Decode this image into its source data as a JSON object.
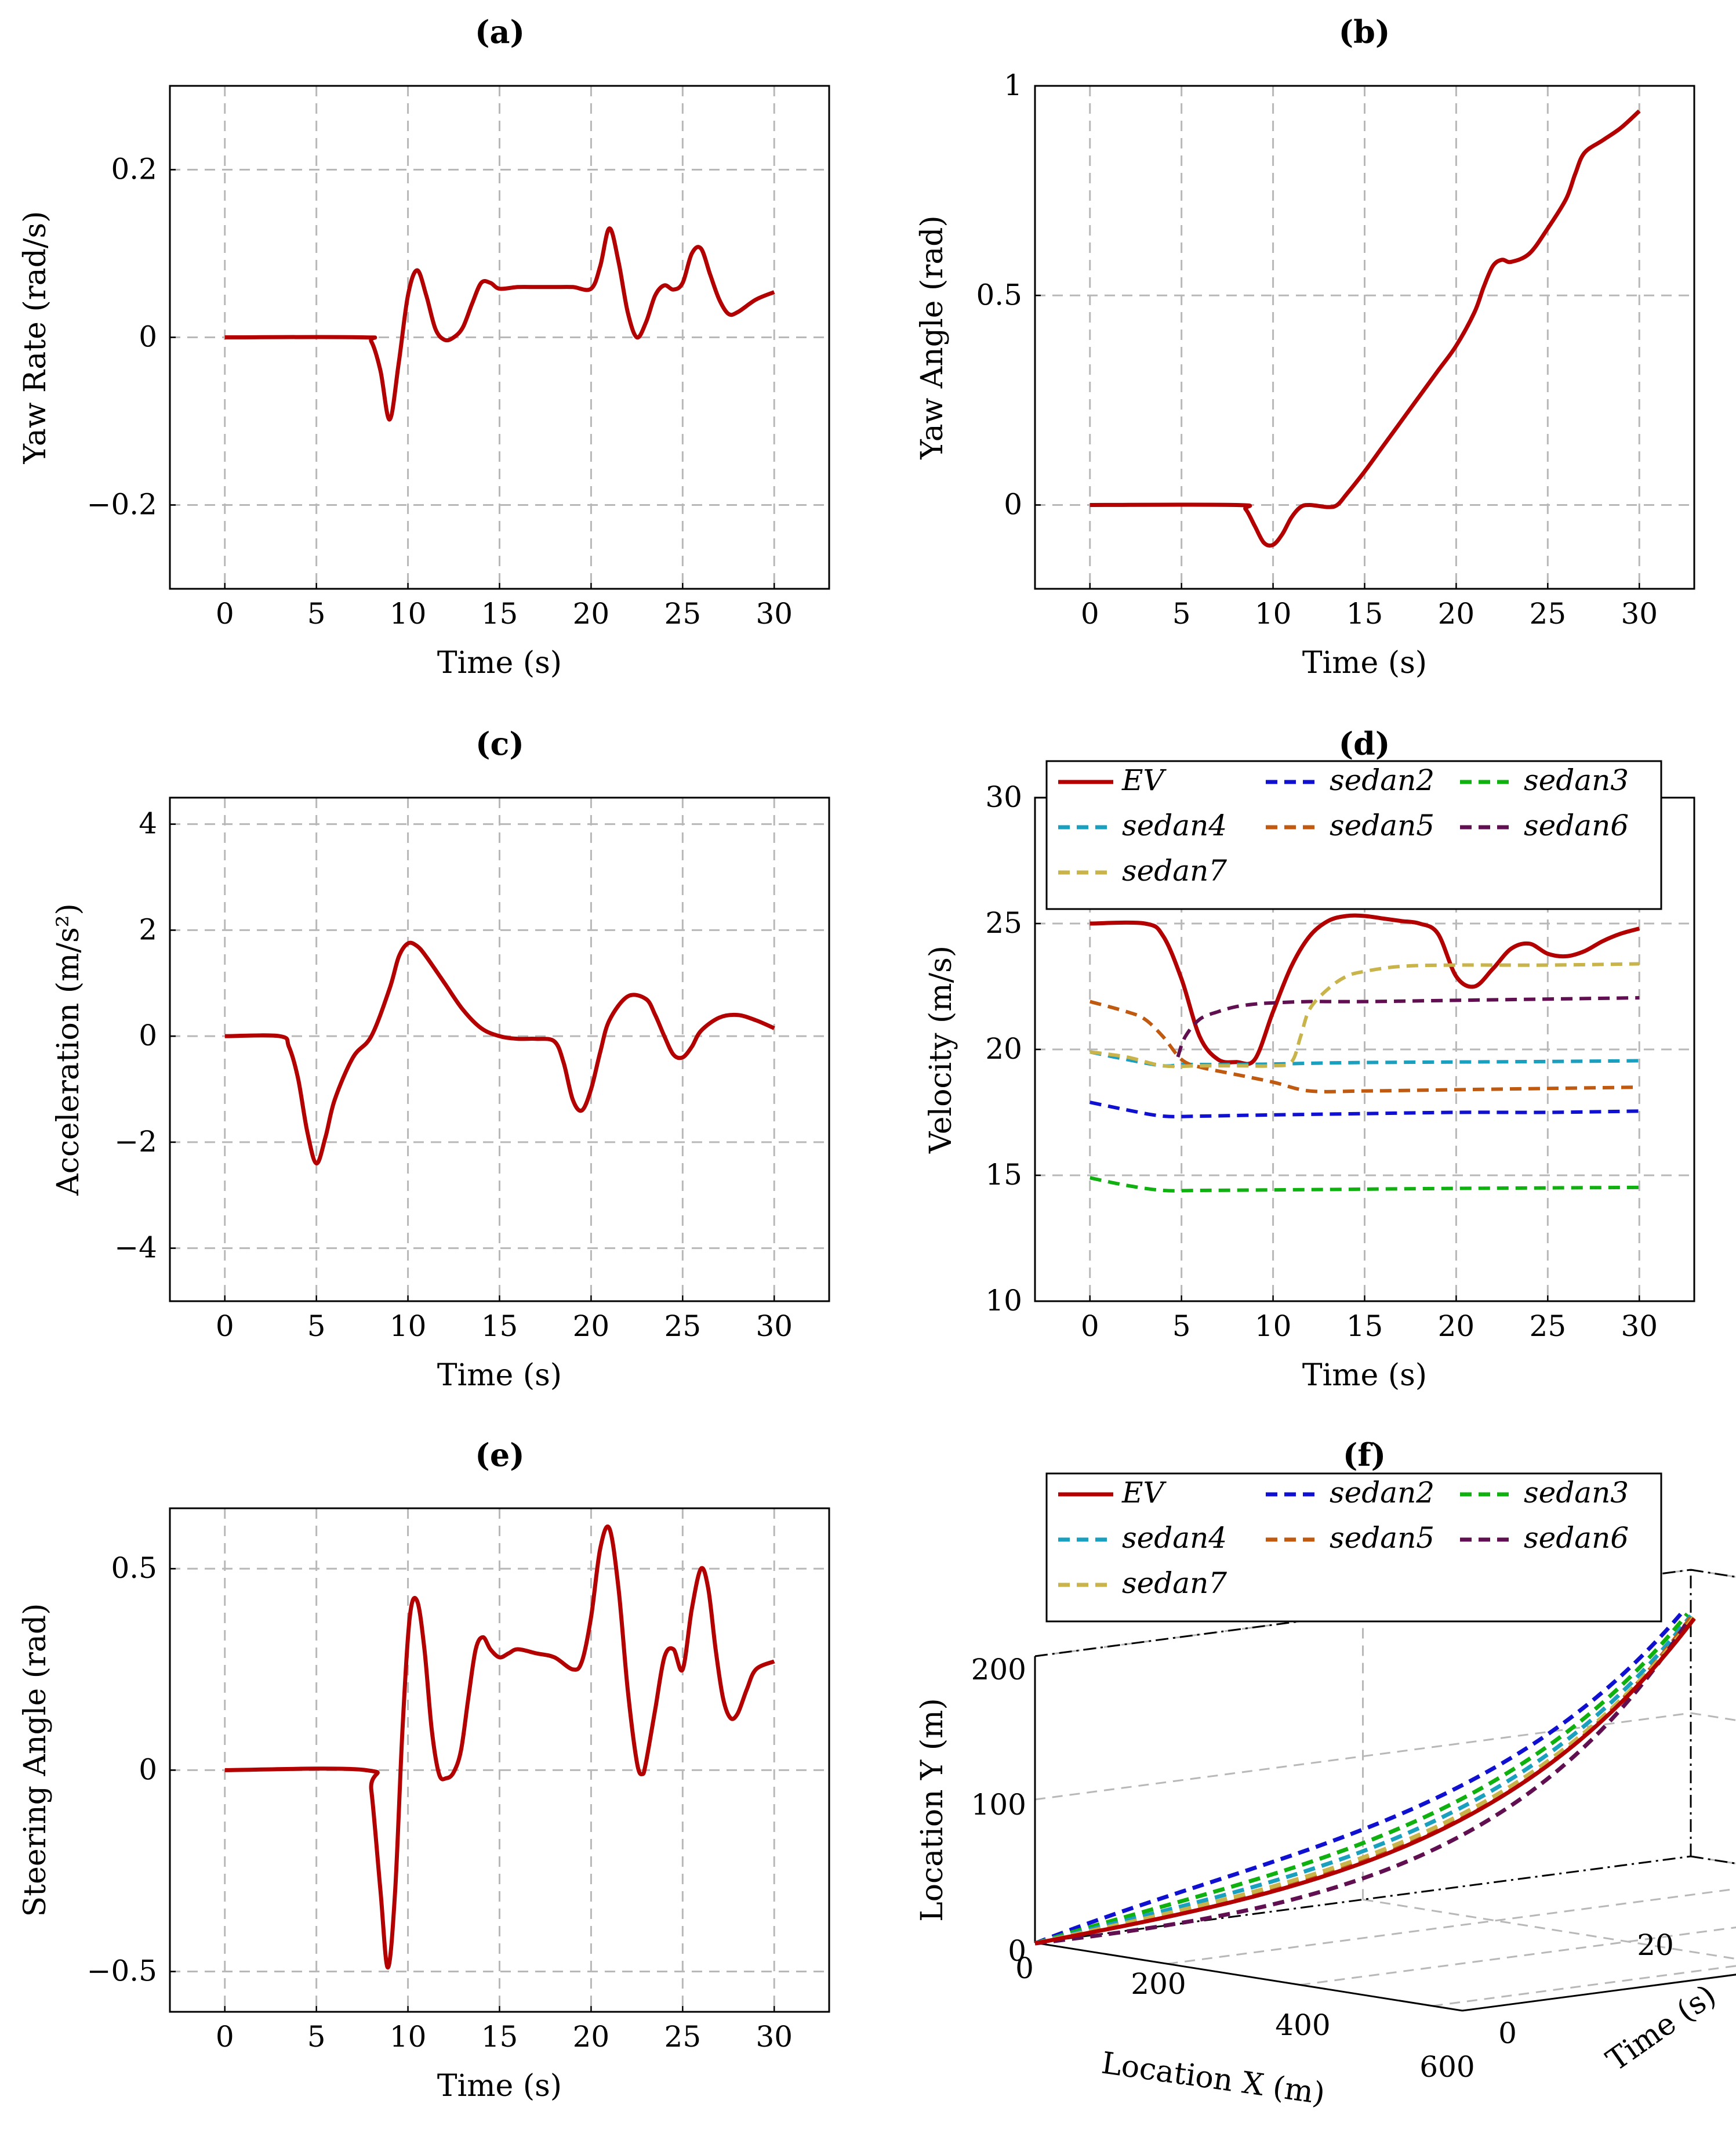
{
  "chart_data": [
    {
      "id": "a",
      "type": "line",
      "title": "(a)",
      "xlabel": "Time (s)",
      "ylabel": "Yaw Rate (rad/s)",
      "xlim": [
        -3,
        33
      ],
      "ylim": [
        -0.3,
        0.3
      ],
      "xticks": [
        0,
        5,
        10,
        15,
        20,
        25,
        30
      ],
      "xtick_labels": [
        "0",
        "5",
        "10",
        "15",
        "20",
        "25",
        "30"
      ],
      "yticks": [
        -0.2,
        0,
        0.2
      ],
      "ytick_labels": [
        "−0.2",
        "0",
        "0.2"
      ],
      "grid": true,
      "series": [
        {
          "color": "#b30000",
          "style": "solid",
          "x": [
            0,
            7.5,
            8,
            8.5,
            9,
            9.5,
            10,
            10.5,
            11,
            11.5,
            12,
            12.5,
            13,
            13.5,
            14,
            14.5,
            15,
            16,
            17,
            18,
            19,
            20,
            20.5,
            21,
            21.5,
            22,
            22.5,
            23,
            23.5,
            24,
            24.5,
            25,
            25.5,
            26,
            26.5,
            27,
            27.5,
            28,
            29,
            30
          ],
          "y": [
            0,
            0,
            -0.005,
            -0.04,
            -0.098,
            -0.03,
            0.05,
            0.08,
            0.05,
            0.01,
            -0.003,
            0.0,
            0.012,
            0.04,
            0.065,
            0.065,
            0.058,
            0.06,
            0.06,
            0.06,
            0.06,
            0.058,
            0.085,
            0.13,
            0.09,
            0.03,
            0.0,
            0.018,
            0.05,
            0.062,
            0.057,
            0.065,
            0.1,
            0.106,
            0.075,
            0.045,
            0.028,
            0.03,
            0.045,
            0.054
          ]
        }
      ]
    },
    {
      "id": "b",
      "type": "line",
      "title": "(b)",
      "xlabel": "Time (s)",
      "ylabel": "Yaw Angle (rad)",
      "xlim": [
        -3,
        33
      ],
      "ylim": [
        -0.2,
        1
      ],
      "xticks": [
        0,
        5,
        10,
        15,
        20,
        25,
        30
      ],
      "xtick_labels": [
        "0",
        "5",
        "10",
        "15",
        "20",
        "25",
        "30"
      ],
      "yticks": [
        0,
        0.5,
        1
      ],
      "ytick_labels": [
        "0",
        "0.5",
        "1"
      ],
      "grid": true,
      "series": [
        {
          "color": "#b30000",
          "style": "solid",
          "x": [
            0,
            8,
            8.5,
            9,
            9.5,
            10,
            10.5,
            11,
            11.5,
            12,
            13,
            13.5,
            14,
            15,
            16,
            17,
            18,
            19,
            20,
            21,
            21.5,
            22,
            22.5,
            23,
            24,
            25,
            26,
            26.5,
            27,
            28,
            29,
            30
          ],
          "y": [
            0,
            0,
            -0.01,
            -0.05,
            -0.09,
            -0.095,
            -0.07,
            -0.03,
            -0.005,
            0.0,
            -0.005,
            0.0,
            0.025,
            0.08,
            0.14,
            0.2,
            0.26,
            0.32,
            0.38,
            0.46,
            0.52,
            0.57,
            0.585,
            0.58,
            0.6,
            0.66,
            0.73,
            0.79,
            0.84,
            0.87,
            0.9,
            0.94
          ]
        }
      ]
    },
    {
      "id": "c",
      "type": "line",
      "title": "(c)",
      "xlabel": "Time (s)",
      "ylabel": "Acceleration (m/s²)",
      "xlim": [
        -3,
        33
      ],
      "ylim": [
        -5,
        4.5
      ],
      "xticks": [
        0,
        5,
        10,
        15,
        20,
        25,
        30
      ],
      "xtick_labels": [
        "0",
        "5",
        "10",
        "15",
        "20",
        "25",
        "30"
      ],
      "yticks": [
        -4,
        -2,
        0,
        2,
        4
      ],
      "ytick_labels": [
        "−4",
        "−2",
        "0",
        "2",
        "4"
      ],
      "grid": true,
      "series": [
        {
          "color": "#b30000",
          "style": "solid",
          "x": [
            0,
            3,
            3.5,
            4,
            4.5,
            5,
            5.5,
            6,
            7,
            8,
            9,
            9.5,
            10,
            10.5,
            11,
            12,
            13,
            14,
            15,
            16,
            17,
            18,
            18.5,
            19,
            19.5,
            20,
            20.5,
            21,
            22,
            23,
            23.5,
            24,
            24.5,
            25,
            25.5,
            26,
            27,
            28,
            29,
            30
          ],
          "y": [
            0,
            0,
            -0.2,
            -0.8,
            -1.8,
            -2.4,
            -1.9,
            -1.2,
            -0.4,
            0,
            0.9,
            1.5,
            1.75,
            1.7,
            1.5,
            1.0,
            0.5,
            0.15,
            0,
            -0.05,
            -0.05,
            -0.1,
            -0.5,
            -1.2,
            -1.4,
            -1.0,
            -0.3,
            0.3,
            0.75,
            0.7,
            0.4,
            0.0,
            -0.35,
            -0.4,
            -0.2,
            0.1,
            0.35,
            0.4,
            0.3,
            0.15
          ]
        }
      ]
    },
    {
      "id": "d",
      "type": "line",
      "title": "(d)",
      "xlabel": "Time (s)",
      "ylabel": "Velocity (m/s)",
      "xlim": [
        -3,
        33
      ],
      "ylim": [
        10,
        30
      ],
      "xticks": [
        0,
        5,
        10,
        15,
        20,
        25,
        30
      ],
      "xtick_labels": [
        "0",
        "5",
        "10",
        "15",
        "20",
        "25",
        "30"
      ],
      "yticks": [
        10,
        15,
        20,
        25,
        30
      ],
      "ytick_labels": [
        "10",
        "15",
        "20",
        "25",
        "30"
      ],
      "grid": true,
      "legend_position": "top",
      "series": [
        {
          "name": "EV",
          "color": "#b30000",
          "style": "solid",
          "x": [
            0,
            3,
            4,
            5,
            6,
            7,
            8,
            9,
            10,
            11,
            12,
            13,
            14,
            15,
            16,
            17,
            18,
            19,
            20,
            21,
            22,
            23,
            24,
            25,
            26,
            27,
            28,
            29,
            30
          ],
          "y": [
            25,
            25,
            24.5,
            22.8,
            20.5,
            19.6,
            19.5,
            19.6,
            21.5,
            23.3,
            24.5,
            25.1,
            25.3,
            25.3,
            25.2,
            25.1,
            25,
            24.6,
            22.9,
            22.5,
            23.2,
            24,
            24.2,
            23.8,
            23.7,
            23.9,
            24.3,
            24.6,
            24.8
          ]
        },
        {
          "name": "sedan2",
          "color": "#1010d0",
          "style": "dashed",
          "x": [
            0,
            2,
            4,
            6,
            10,
            15,
            20,
            25,
            30
          ],
          "y": [
            17.9,
            17.6,
            17.35,
            17.35,
            17.4,
            17.45,
            17.5,
            17.5,
            17.55
          ]
        },
        {
          "name": "sedan3",
          "color": "#10b010",
          "style": "dashed",
          "x": [
            0,
            2,
            4,
            6,
            10,
            15,
            20,
            25,
            30
          ],
          "y": [
            14.9,
            14.6,
            14.4,
            14.4,
            14.42,
            14.45,
            14.48,
            14.5,
            14.52
          ]
        },
        {
          "name": "sedan4",
          "color": "#1a9fbf",
          "style": "dashed",
          "x": [
            0,
            2,
            4,
            5,
            6,
            8,
            10,
            12,
            15,
            20,
            25,
            30
          ],
          "y": [
            19.9,
            19.6,
            19.35,
            19.4,
            19.4,
            19.4,
            19.42,
            19.45,
            19.48,
            19.5,
            19.52,
            19.55
          ]
        },
        {
          "name": "sedan5",
          "color": "#c05a10",
          "style": "dashed",
          "x": [
            0,
            2,
            3,
            4,
            5,
            6,
            8,
            10,
            12,
            15,
            20,
            25,
            30
          ],
          "y": [
            21.9,
            21.5,
            21.2,
            20.5,
            19.6,
            19.3,
            19.0,
            18.7,
            18.35,
            18.35,
            18.4,
            18.45,
            18.5
          ]
        },
        {
          "name": "sedan6",
          "color": "#601050",
          "style": "dashed",
          "x": [
            4.8,
            5.2,
            6,
            7,
            8,
            9,
            10,
            12,
            15,
            20,
            25,
            30
          ],
          "y": [
            19.7,
            20.5,
            21.2,
            21.5,
            21.7,
            21.8,
            21.85,
            21.9,
            21.9,
            21.95,
            22,
            22.05
          ]
        },
        {
          "name": "sedan7",
          "color": "#c8b44a",
          "style": "dashed",
          "x": [
            0,
            2,
            4,
            6,
            8,
            10,
            11,
            11.5,
            12,
            13,
            14,
            15,
            17,
            20,
            25,
            30
          ],
          "y": [
            19.9,
            19.7,
            19.35,
            19.35,
            19.35,
            19.35,
            19.5,
            20.5,
            21.6,
            22.4,
            22.9,
            23.1,
            23.3,
            23.35,
            23.35,
            23.4
          ]
        }
      ]
    },
    {
      "id": "e",
      "type": "line",
      "title": "(e)",
      "xlabel": "Time (s)",
      "ylabel": "Steering Angle (rad)",
      "xlim": [
        -3,
        33
      ],
      "ylim": [
        -0.6,
        0.65
      ],
      "xticks": [
        0,
        5,
        10,
        15,
        20,
        25,
        30
      ],
      "xtick_labels": [
        "0",
        "5",
        "10",
        "15",
        "20",
        "25",
        "30"
      ],
      "yticks": [
        -0.5,
        0,
        0.5
      ],
      "ytick_labels": [
        "−0.5",
        "0",
        "0.5"
      ],
      "grid": true,
      "series": [
        {
          "color": "#b30000",
          "style": "solid",
          "x": [
            0,
            7.7,
            8,
            8.5,
            8.9,
            9.3,
            9.7,
            10.1,
            10.5,
            10.9,
            11.3,
            11.7,
            12.1,
            12.5,
            12.9,
            13.3,
            13.7,
            14.1,
            14.5,
            15,
            15.5,
            16,
            17,
            18,
            19,
            19.5,
            20,
            20.5,
            21,
            21.5,
            22,
            22.5,
            22.8,
            23,
            23.5,
            24,
            24.5,
            25,
            25.5,
            26,
            26.4,
            26.8,
            27.2,
            27.6,
            28,
            28.5,
            29,
            30
          ],
          "y": [
            0,
            0,
            -0.05,
            -0.3,
            -0.49,
            -0.3,
            0.1,
            0.38,
            0.42,
            0.3,
            0.1,
            -0.01,
            -0.02,
            -0.005,
            0.05,
            0.18,
            0.3,
            0.33,
            0.3,
            0.28,
            0.29,
            0.3,
            0.29,
            0.28,
            0.25,
            0.27,
            0.38,
            0.55,
            0.6,
            0.45,
            0.2,
            0.02,
            -0.01,
            0.02,
            0.15,
            0.28,
            0.3,
            0.25,
            0.4,
            0.5,
            0.45,
            0.3,
            0.18,
            0.13,
            0.14,
            0.2,
            0.25,
            0.27
          ]
        }
      ]
    },
    {
      "id": "f",
      "type": "line3d",
      "title": "(f)",
      "xlabel": "Location X (m)",
      "ylabel": "Location Y (m)",
      "zlabel": "Time (s)",
      "xticks": [
        "200",
        "400",
        "600"
      ],
      "yticks": [
        "0",
        "100",
        "200"
      ],
      "zticks": [
        "0",
        "20"
      ],
      "origin_x_label": "0",
      "grid": true,
      "legend_position": "top",
      "series": [
        {
          "name": "EV",
          "color": "#b30000",
          "style": "solid"
        },
        {
          "name": "sedan2",
          "color": "#1010d0",
          "style": "dashed"
        },
        {
          "name": "sedan3",
          "color": "#10b010",
          "style": "dashed"
        },
        {
          "name": "sedan4",
          "color": "#1a9fbf",
          "style": "dashed"
        },
        {
          "name": "sedan5",
          "color": "#c05a10",
          "style": "dashed"
        },
        {
          "name": "sedan6",
          "color": "#601050",
          "style": "dashed"
        },
        {
          "name": "sedan7",
          "color": "#c8b44a",
          "style": "dashed"
        }
      ]
    }
  ]
}
